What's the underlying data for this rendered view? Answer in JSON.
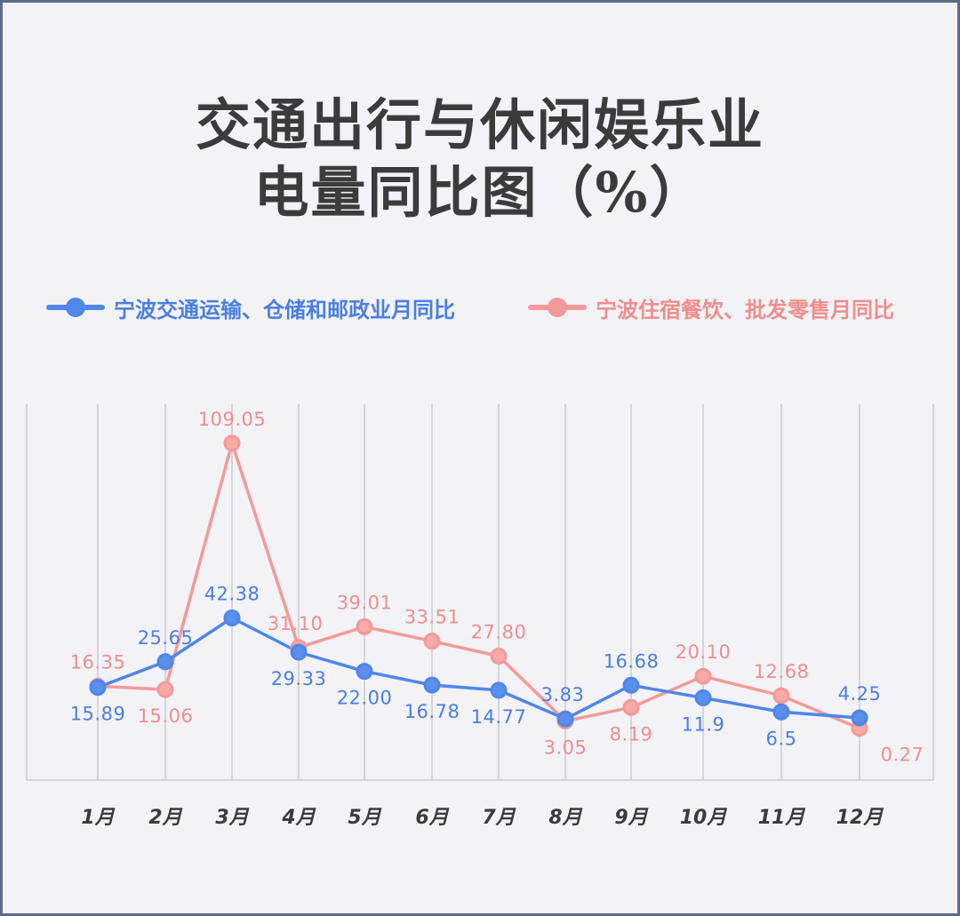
{
  "title_line1": "交通出行与休闲娱乐业",
  "title_line2": "电量同比图（%）",
  "colors": {
    "series1": "#4f86e8",
    "series1_fill": "#5b8fec",
    "series1_text": "#4a7fe0",
    "series2": "#f39a98",
    "series2_fill": "#f7aaa8",
    "series2_text": "#ef8e8c",
    "grid": "#c9c9d1",
    "axis_label": "#3b3b3b"
  },
  "chart_data": {
    "type": "line",
    "categories": [
      "1月",
      "2月",
      "3月",
      "4月",
      "5月",
      "6月",
      "7月",
      "8月",
      "9月",
      "10月",
      "11月",
      "12月"
    ],
    "series": [
      {
        "name": "宁波交通运输、仓储和邮政业月同比",
        "values": [
          15.89,
          25.65,
          42.38,
          29.33,
          22.0,
          16.78,
          14.77,
          3.83,
          16.68,
          11.9,
          6.5,
          4.25
        ],
        "labels": [
          "15.89",
          "25.65",
          "42.38",
          "29.33",
          "22.00",
          "16.78",
          "14.77",
          "3.83",
          "16.68",
          "11.9",
          "6.5",
          "4.25"
        ]
      },
      {
        "name": "宁波住宿餐饮、批发零售月同比",
        "values": [
          16.35,
          15.06,
          109.05,
          31.1,
          39.01,
          33.51,
          27.8,
          3.05,
          8.19,
          20.1,
          12.68,
          0.27
        ],
        "labels": [
          "16.35",
          "15.06",
          "109.05",
          "31.10",
          "39.01",
          "33.51",
          "27.80",
          "3.05",
          "8.19",
          "20.10",
          "12.68",
          "0.27"
        ]
      }
    ],
    "ylim": [
      -5,
      120
    ],
    "grid": "vertical",
    "legend": "top",
    "xlabel": "",
    "ylabel": ""
  }
}
